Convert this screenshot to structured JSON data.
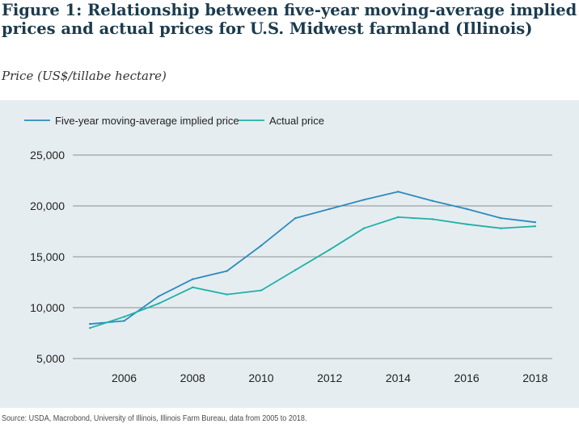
{
  "title": "Figure 1: Relationship between five-year moving-average implied prices and actual prices for U.S. Midwest farmland (Illinois)",
  "subtitle": "Price (US$/tillabe hectare)",
  "source": "Source: USDA, Macrobond, University of Illinois, Illinois Farm Bureau, data from 2005 to 2018.",
  "colors": {
    "implied": "#2b8bbf",
    "actual": "#1fb1a8",
    "grid": "#8a8f93",
    "background": "#e6edf0"
  },
  "chart_data": {
    "type": "line",
    "title": "Figure 1: Relationship between five-year moving-average implied prices and actual prices for U.S. Midwest farmland (Illinois)",
    "ylabel": "Price (US$/tillabe hectare)",
    "xlabel": "",
    "x": [
      2005,
      2006,
      2007,
      2008,
      2009,
      2010,
      2011,
      2012,
      2013,
      2014,
      2015,
      2016,
      2017,
      2018
    ],
    "xlim": [
      2004.5,
      2018.5
    ],
    "ylim": [
      5000,
      25000
    ],
    "x_ticks": [
      "2006",
      "2008",
      "2010",
      "2012",
      "2014",
      "2016",
      "2018"
    ],
    "y_ticks": [
      "5,000",
      "10,000",
      "15,000",
      "20,000",
      "25,000"
    ],
    "grid": "horizontal",
    "legend": "top-left",
    "series": [
      {
        "name": "Five-year moving-average implied price",
        "color": "#2b8bbf",
        "values": [
          8400,
          8700,
          11100,
          12800,
          13600,
          16100,
          18800,
          19700,
          20600,
          21400,
          20500,
          19700,
          18800,
          18400
        ]
      },
      {
        "name": "Actual price",
        "color": "#1fb1a8",
        "values": [
          8000,
          9100,
          10400,
          12000,
          11300,
          11700,
          13700,
          15700,
          17800,
          18900,
          18700,
          18200,
          17800,
          18000
        ]
      }
    ]
  }
}
